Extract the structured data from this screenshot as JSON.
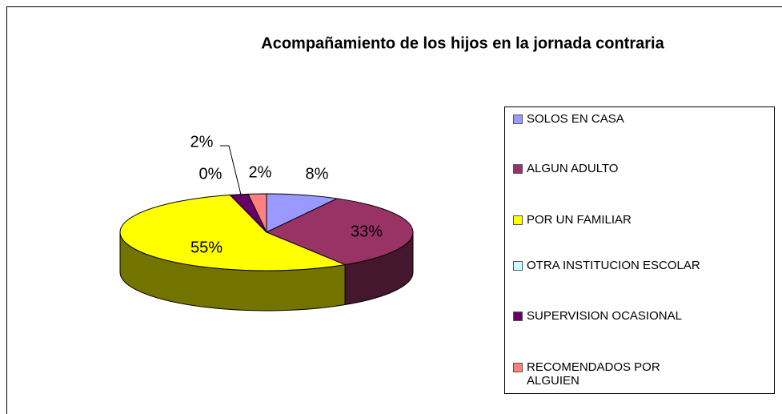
{
  "chart_data": {
    "type": "pie3d",
    "title": "Acompañamiento de los hijos en la jornada contraria",
    "categories": [
      "SOLOS EN CASA",
      "ALGUN ADULTO",
      "POR UN FAMILIAR",
      "OTRA INSTITUCION ESCOLAR",
      "SUPERVISION OCASIONAL",
      "RECOMENDADOS POR ALGUIEN"
    ],
    "values": [
      8,
      33,
      55,
      0,
      2,
      2
    ],
    "value_labels": [
      "8%",
      "33%",
      "55%",
      "0%",
      "2%",
      "2%"
    ],
    "colors": [
      "#9999ff",
      "#993366",
      "#ffff00",
      "#ccffff",
      "#660066",
      "#ff8080"
    ],
    "legend": "right"
  }
}
